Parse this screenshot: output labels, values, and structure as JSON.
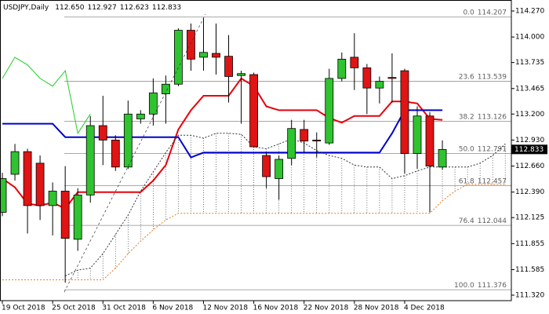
{
  "chart_data": {
    "type": "candlestick",
    "symbol": "USDJPY,Daily",
    "last_bar_labels": [
      "112.650",
      "112.927",
      "112.623",
      "112.833"
    ],
    "categories": [
      "19 Oct 2018",
      null,
      null,
      null,
      "25 Oct 2018",
      null,
      null,
      null,
      "31 Oct 2018",
      null,
      null,
      null,
      "6 Nov 2018",
      null,
      null,
      null,
      "12 Nov 2018",
      null,
      null,
      null,
      "16 Nov 2018",
      null,
      null,
      null,
      "22 Nov 2018",
      null,
      null,
      null,
      "28 Nov 2018",
      null,
      null,
      null,
      "4 Dec 2018",
      null,
      null,
      null,
      null,
      null,
      null,
      null,
      null
    ],
    "open": [
      112.18,
      112.575,
      112.81,
      112.69,
      112.25,
      112.4,
      111.9,
      112.36,
      113.08,
      112.93,
      112.65,
      113.15,
      113.2,
      113.41,
      113.51,
      114.07,
      113.79,
      113.83,
      113.8,
      113.6,
      113.61,
      112.77,
      112.53,
      112.74,
      113.04,
      112.93,
      112.9,
      113.57,
      113.79,
      113.68,
      113.47,
      113.58,
      113.65,
      112.79,
      113.18,
      112.65,
      null,
      null,
      null,
      null,
      null
    ],
    "high": [
      112.59,
      112.89,
      112.84,
      112.77,
      112.49,
      112.66,
      112.43,
      113.18,
      113.39,
      112.98,
      113.34,
      113.24,
      113.57,
      113.6,
      114.09,
      114.14,
      114.2,
      114.14,
      114.02,
      113.65,
      113.63,
      112.8,
      112.77,
      113.14,
      113.14,
      113.01,
      113.67,
      113.84,
      114.04,
      113.72,
      113.59,
      113.83,
      113.67,
      113.28,
      113.22,
      112.927,
      null,
      null,
      null,
      null,
      null
    ],
    "low": [
      112.14,
      112.51,
      111.96,
      112.1,
      111.94,
      111.45,
      111.78,
      112.28,
      112.67,
      112.61,
      112.63,
      113.1,
      113.08,
      113.1,
      113.49,
      113.65,
      113.65,
      113.61,
      113.32,
      113.1,
      112.85,
      112.43,
      112.31,
      112.67,
      112.8,
      112.75,
      112.88,
      113.54,
      113.45,
      113.2,
      113.31,
      113.32,
      112.58,
      112.63,
      112.18,
      112.623,
      null,
      null,
      null,
      null,
      null
    ],
    "close": [
      112.53,
      112.81,
      112.25,
      112.25,
      112.4,
      111.91,
      112.36,
      113.08,
      112.93,
      112.65,
      113.2,
      113.2,
      113.42,
      113.51,
      114.07,
      113.77,
      113.84,
      113.79,
      113.59,
      113.62,
      112.86,
      112.55,
      112.73,
      113.05,
      112.92,
      112.92,
      113.57,
      113.77,
      113.68,
      113.47,
      113.54,
      113.57,
      112.79,
      113.18,
      112.66,
      112.833,
      null,
      null,
      null,
      null,
      null
    ],
    "bull_color": "#2fc42f",
    "bear_color": "#e01414",
    "indicators": [
      {
        "color": "#e8000b",
        "style": "solid",
        "width": 2,
        "values": [
          112.53,
          112.44,
          112.27,
          112.25,
          112.28,
          112.22,
          112.39,
          112.39,
          112.39,
          112.39,
          112.39,
          112.39,
          112.51,
          112.67,
          113.04,
          113.24,
          113.39,
          113.39,
          113.39,
          113.57,
          113.49,
          113.28,
          113.24,
          113.24,
          113.24,
          113.24,
          113.16,
          113.11,
          113.18,
          113.18,
          113.18,
          113.33,
          113.33,
          113.31,
          113.15,
          113.14,
          null,
          null,
          null,
          null,
          null
        ]
      },
      {
        "color": "#0000cc",
        "style": "solid",
        "width": 2,
        "values": [
          113.1,
          113.1,
          113.1,
          113.1,
          113.1,
          112.96,
          112.96,
          112.96,
          112.96,
          112.96,
          112.96,
          112.96,
          112.96,
          112.96,
          112.96,
          112.75,
          112.8,
          112.8,
          112.8,
          112.8,
          112.8,
          112.8,
          112.8,
          112.8,
          112.8,
          112.8,
          112.8,
          112.8,
          112.8,
          112.8,
          112.8,
          113.0,
          113.24,
          113.24,
          113.24,
          113.24,
          null,
          null,
          null,
          null,
          null
        ]
      },
      {
        "color": "#22cc22",
        "style": "solid",
        "width": 1,
        "values": [
          113.57,
          113.79,
          113.71,
          113.57,
          113.49,
          113.65,
          113.0,
          113.2,
          null,
          null,
          null,
          null,
          null,
          null,
          null,
          null,
          null,
          null,
          null,
          null,
          null,
          null,
          null,
          null,
          null,
          null,
          null,
          null,
          null,
          null,
          null,
          null,
          null,
          null,
          null,
          null,
          null,
          null,
          null,
          null,
          null
        ]
      },
      {
        "color": "#333333",
        "style": "dotted",
        "width": 1,
        "values": [
          null,
          null,
          null,
          null,
          null,
          111.52,
          111.58,
          111.6,
          111.75,
          111.95,
          112.15,
          112.4,
          112.6,
          112.8,
          112.98,
          112.98,
          112.95,
          113.0,
          113.0,
          112.99,
          112.86,
          112.84,
          112.89,
          112.94,
          112.9,
          112.82,
          112.77,
          112.74,
          112.67,
          112.65,
          112.65,
          112.53,
          112.56,
          112.61,
          112.65,
          112.65,
          112.65,
          112.65,
          112.69,
          112.77,
          112.89
        ]
      },
      {
        "color": "#e07b20",
        "style": "dotted",
        "width": 1,
        "values": [
          111.48,
          111.48,
          111.48,
          111.48,
          111.48,
          111.48,
          111.48,
          111.48,
          111.48,
          111.6,
          111.75,
          111.88,
          112.0,
          112.1,
          112.17,
          112.17,
          112.17,
          112.17,
          112.17,
          112.17,
          112.17,
          112.17,
          112.17,
          112.17,
          112.17,
          112.17,
          112.17,
          112.17,
          112.17,
          112.17,
          112.17,
          112.17,
          112.17,
          112.17,
          112.17,
          112.3,
          112.4,
          112.47,
          112.47,
          112.47,
          112.47
        ]
      }
    ],
    "fibonacci": [
      {
        "ratio": "0.0",
        "price": 114.207
      },
      {
        "ratio": "23.6",
        "price": 113.539
      },
      {
        "ratio": "38.2",
        "price": 113.126
      },
      {
        "ratio": "50.0",
        "price": 112.791
      },
      {
        "ratio": "61.8",
        "price": 112.457
      },
      {
        "ratio": "76.4",
        "price": 112.044
      },
      {
        "ratio": "100.0",
        "price": 111.376
      }
    ],
    "ylim": [
      111.263,
      114.384
    ],
    "yticks": [
      {
        "value": 114.27,
        "label": "114.270"
      },
      {
        "value": 114.0,
        "label": "114.000"
      },
      {
        "value": 113.735,
        "label": "113.735"
      },
      {
        "value": 113.465,
        "label": "113.465"
      },
      {
        "value": 113.2,
        "label": "113.200"
      },
      {
        "value": 112.93,
        "label": "112.930"
      },
      {
        "value": 112.66,
        "label": "112.660"
      },
      {
        "value": 112.39,
        "label": "112.390"
      },
      {
        "value": 112.125,
        "label": "112.125"
      },
      {
        "value": 111.855,
        "label": "111.855"
      },
      {
        "value": 111.585,
        "label": "111.585"
      },
      {
        "value": 111.32,
        "label": "111.320"
      }
    ]
  }
}
